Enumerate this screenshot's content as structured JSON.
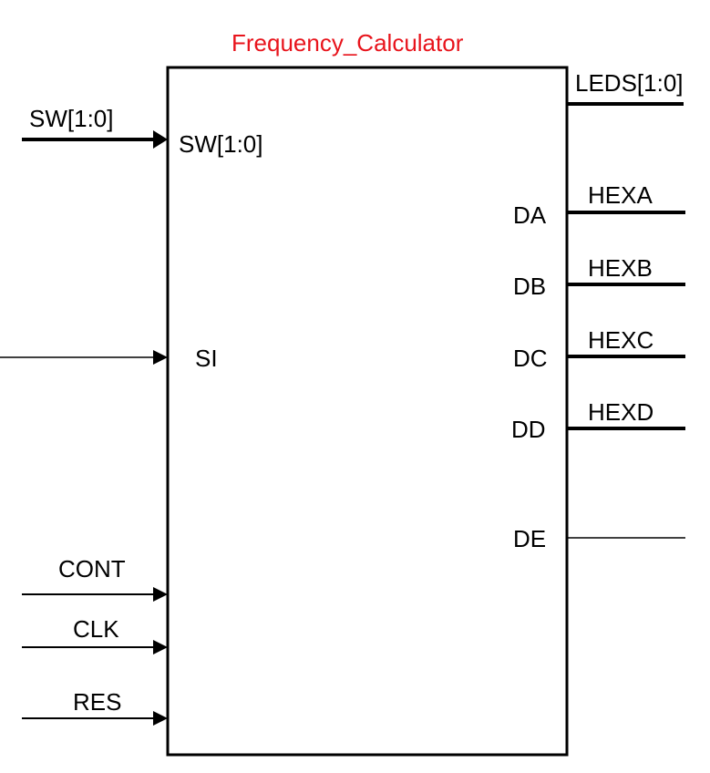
{
  "block": {
    "title": "Frequency_Calculator",
    "title_color": "#e8141c",
    "line_color": "#000000"
  },
  "inputs": {
    "sw": {
      "signal": "SW[1:0]",
      "port": "SW[1:0]",
      "bus": true
    },
    "si": {
      "signal": "",
      "port": "SI",
      "bus": false
    },
    "cont": {
      "signal": "CONT",
      "port": "",
      "bus": false
    },
    "clk": {
      "signal": "CLK",
      "port": "",
      "bus": false
    },
    "res": {
      "signal": "RES",
      "port": "",
      "bus": false
    }
  },
  "outputs": {
    "leds": {
      "signal": "LEDS[1:0]",
      "port": "",
      "bus": true
    },
    "da": {
      "signal": "HEXA",
      "port": "DA",
      "bus": true
    },
    "db": {
      "signal": "HEXB",
      "port": "DB",
      "bus": true
    },
    "dc": {
      "signal": "HEXC",
      "port": "DC",
      "bus": true
    },
    "dd": {
      "signal": "HEXD",
      "port": "DD",
      "bus": true
    },
    "de": {
      "signal": "",
      "port": "DE",
      "bus": false
    }
  }
}
